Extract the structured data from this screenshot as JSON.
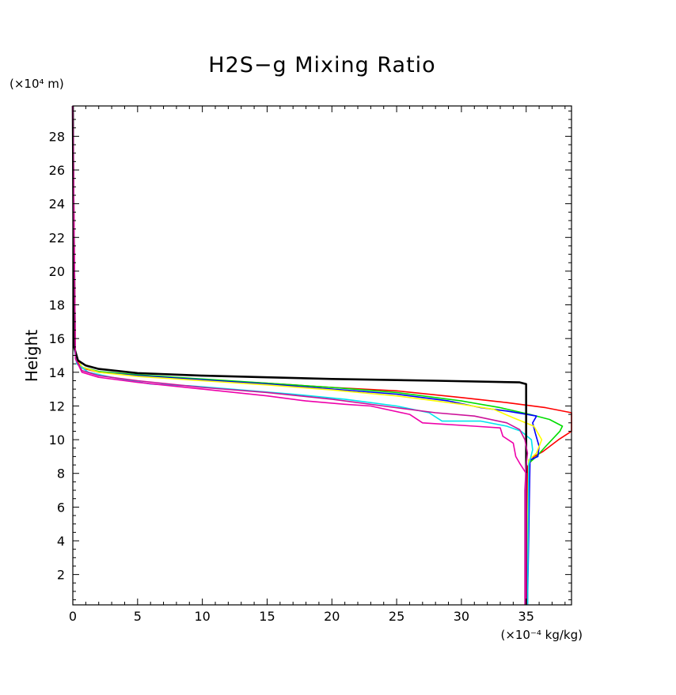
{
  "chart_data": {
    "type": "line",
    "title": "H2S−g Mixing Ratio",
    "xlabel": "",
    "ylabel": "Height",
    "x_unit_label": "(×10⁻⁴ kg/kg)",
    "y_unit_label": "(×10⁴ m)",
    "xlim": [
      0,
      38.5
    ],
    "ylim": [
      0.2,
      29.8
    ],
    "x_ticks": [
      0,
      5,
      10,
      15,
      20,
      25,
      30,
      35
    ],
    "x_tick_labels": [
      "0",
      "5",
      "10",
      "15",
      "20",
      "25",
      "30",
      "35"
    ],
    "y_ticks": [
      2,
      4,
      6,
      8,
      10,
      12,
      14,
      16,
      18,
      20,
      22,
      24,
      26,
      28
    ],
    "y_tick_labels": [
      "2",
      "4",
      "6",
      "8",
      "10",
      "12",
      "14",
      "16",
      "18",
      "20",
      "22",
      "24",
      "26",
      "28"
    ],
    "grid": false,
    "series": [
      {
        "name": "red",
        "color": "#ff0000",
        "points": [
          [
            35,
            0.2
          ],
          [
            35.1,
            8.4
          ],
          [
            35.6,
            9.0
          ],
          [
            36.3,
            9.3
          ],
          [
            37.5,
            10.0
          ],
          [
            38.5,
            10.5
          ],
          [
            38.5,
            10.5
          ],
          [
            38.5,
            11.6
          ],
          [
            36.5,
            11.9
          ],
          [
            33.5,
            12.2
          ],
          [
            30,
            12.5
          ],
          [
            25,
            12.9
          ],
          [
            20,
            13.1
          ],
          [
            15,
            13.35
          ],
          [
            10,
            13.55
          ],
          [
            5,
            13.8
          ],
          [
            2,
            14.0
          ],
          [
            0.7,
            14.25
          ],
          [
            0.3,
            14.7
          ],
          [
            0.1,
            15.5
          ],
          [
            0,
            29.8
          ]
        ]
      },
      {
        "name": "green",
        "color": "#00dd00",
        "points": [
          [
            35.1,
            0.2
          ],
          [
            35.2,
            8.6
          ],
          [
            35.8,
            9.0
          ],
          [
            36.5,
            9.6
          ],
          [
            37.6,
            10.5
          ],
          [
            37.8,
            10.8
          ],
          [
            36.8,
            11.2
          ],
          [
            35.3,
            11.5
          ],
          [
            33,
            11.9
          ],
          [
            30,
            12.3
          ],
          [
            25,
            12.8
          ],
          [
            20,
            13.1
          ],
          [
            15,
            13.35
          ],
          [
            10,
            13.6
          ],
          [
            5,
            13.85
          ],
          [
            2,
            14.05
          ],
          [
            0.7,
            14.3
          ],
          [
            0.2,
            15.0
          ],
          [
            0,
            29.8
          ]
        ]
      },
      {
        "name": "blue",
        "color": "#0000ff",
        "points": [
          [
            35.1,
            0.2
          ],
          [
            35.3,
            8.8
          ],
          [
            35.9,
            9.0
          ],
          [
            36,
            9.6
          ],
          [
            35.7,
            10.4
          ],
          [
            35.5,
            11.0
          ],
          [
            35.8,
            11.4
          ],
          [
            33.5,
            11.7
          ],
          [
            31.5,
            11.9
          ],
          [
            29,
            12.3
          ],
          [
            25,
            12.7
          ],
          [
            20,
            13.0
          ],
          [
            15,
            13.3
          ],
          [
            10,
            13.55
          ],
          [
            5,
            13.8
          ],
          [
            2,
            14.0
          ],
          [
            0.7,
            14.3
          ],
          [
            0.2,
            15.0
          ],
          [
            0,
            29.8
          ]
        ]
      },
      {
        "name": "yellow",
        "color": "#ffff00",
        "points": [
          [
            35.0,
            0.2
          ],
          [
            35.2,
            8.8
          ],
          [
            35.8,
            9.2
          ],
          [
            36.2,
            10.0
          ],
          [
            35.6,
            10.8
          ],
          [
            34,
            11.3
          ],
          [
            32.5,
            11.8
          ],
          [
            30,
            12.1
          ],
          [
            25,
            12.6
          ],
          [
            20,
            12.95
          ],
          [
            15,
            13.25
          ],
          [
            10,
            13.5
          ],
          [
            5,
            13.75
          ],
          [
            2,
            14.0
          ],
          [
            0.7,
            14.3
          ],
          [
            0.2,
            15.0
          ],
          [
            0,
            29.8
          ]
        ]
      },
      {
        "name": "cyan",
        "color": "#00e5ee",
        "points": [
          [
            35.1,
            0.2
          ],
          [
            35.2,
            8.5
          ],
          [
            35.5,
            9.4
          ],
          [
            35.4,
            10.0
          ],
          [
            34.6,
            10.5
          ],
          [
            33.5,
            10.8
          ],
          [
            31.5,
            11.1
          ],
          [
            28.5,
            11.1
          ],
          [
            27.5,
            11.6
          ],
          [
            25,
            12.0
          ],
          [
            21,
            12.4
          ],
          [
            17,
            12.7
          ],
          [
            13,
            12.95
          ],
          [
            9,
            13.2
          ],
          [
            6,
            13.3
          ],
          [
            3,
            13.7
          ],
          [
            1.2,
            14.0
          ],
          [
            0.3,
            14.5
          ],
          [
            0.1,
            15.5
          ],
          [
            0,
            29.8
          ]
        ]
      },
      {
        "name": "black",
        "color": "#000000",
        "points": [
          [
            35.0,
            0.2
          ],
          [
            35.0,
            8.5
          ],
          [
            35.0,
            13.3
          ],
          [
            34.5,
            13.4
          ],
          [
            28,
            13.5
          ],
          [
            20,
            13.6
          ],
          [
            15,
            13.7
          ],
          [
            10,
            13.8
          ],
          [
            5,
            13.95
          ],
          [
            2,
            14.2
          ],
          [
            1,
            14.4
          ],
          [
            0.4,
            14.7
          ],
          [
            0.1,
            15.5
          ],
          [
            0,
            29.8
          ]
        ]
      },
      {
        "name": "magenta",
        "color": "#ee00aa",
        "points": [
          [
            35.0,
            0.2
          ],
          [
            35.0,
            8.0
          ],
          [
            34.5,
            8.6
          ],
          [
            34.2,
            9.0
          ],
          [
            34.0,
            9.8
          ],
          [
            33.2,
            10.2
          ],
          [
            33.0,
            10.7
          ],
          [
            31,
            10.8
          ],
          [
            27,
            11.0
          ],
          [
            26,
            11.5
          ],
          [
            23,
            12.0
          ],
          [
            21,
            12.1
          ],
          [
            18,
            12.3
          ],
          [
            15,
            12.6
          ],
          [
            10,
            13.0
          ],
          [
            5,
            13.4
          ],
          [
            2,
            13.7
          ],
          [
            0.7,
            14.0
          ],
          [
            0.2,
            14.8
          ],
          [
            0,
            29.8
          ]
        ]
      },
      {
        "name": "magenta-2",
        "color": "#cc1199",
        "points": [
          [
            34.9,
            0.2
          ],
          [
            34.9,
            7.0
          ],
          [
            35.0,
            8.5
          ],
          [
            35.1,
            9.2
          ],
          [
            34.9,
            10.0
          ],
          [
            34.5,
            10.6
          ],
          [
            33.5,
            11.0
          ],
          [
            31,
            11.4
          ],
          [
            28,
            11.6
          ],
          [
            24,
            12.0
          ],
          [
            20,
            12.4
          ],
          [
            15,
            12.8
          ],
          [
            10,
            13.1
          ],
          [
            5,
            13.5
          ],
          [
            2,
            13.8
          ],
          [
            0.7,
            14.1
          ],
          [
            0.2,
            14.8
          ],
          [
            0,
            29.8
          ]
        ]
      }
    ]
  }
}
